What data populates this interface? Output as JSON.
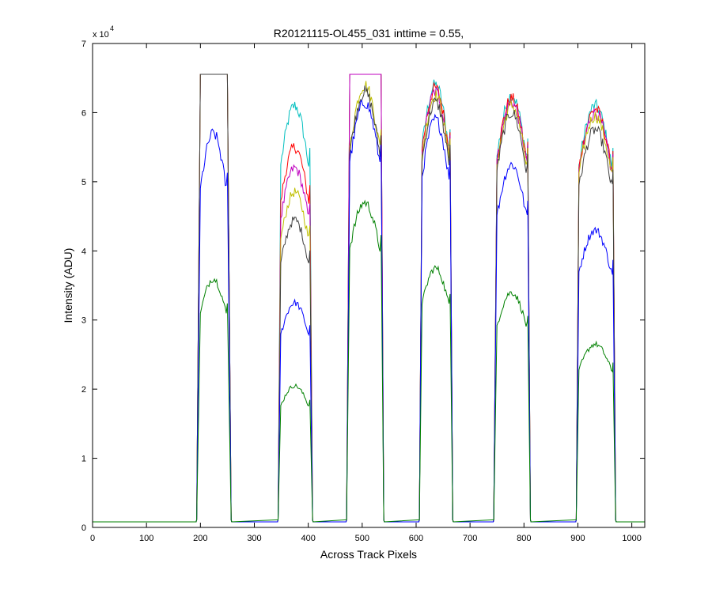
{
  "window": {
    "background": "#ffffff"
  },
  "chart_data": {
    "type": "line",
    "title": "R20121115-OL455_031 inttime = 0.55,",
    "xlabel": "Across Track Pixels",
    "ylabel": "Intensity (ADU)",
    "y_exponent_label": "x 10",
    "y_exponent": "4",
    "xlim": [
      0,
      1024
    ],
    "ylim": [
      0,
      70000
    ],
    "xticks": [
      0,
      100,
      200,
      300,
      400,
      500,
      600,
      700,
      800,
      900,
      1000
    ],
    "xtick_labels": [
      "0",
      "100",
      "200",
      "300",
      "400",
      "500",
      "600",
      "700",
      "800",
      "900",
      "1000"
    ],
    "yticks": [
      0,
      10000,
      20000,
      30000,
      40000,
      50000,
      60000,
      70000
    ],
    "ytick_labels": [
      "0",
      "1",
      "2",
      "3",
      "4",
      "5",
      "6",
      "7"
    ],
    "grid": false,
    "legend": "none",
    "baseline": 800,
    "saturation": 65535,
    "plateaus": [
      {
        "x_start": 192,
        "x_rise": 200,
        "x_fall": 250,
        "x_end": 258
      },
      {
        "x_start": 343,
        "x_rise": 349,
        "x_fall": 403,
        "x_end": 409
      },
      {
        "x_start": 470,
        "x_rise": 477,
        "x_fall": 535,
        "x_end": 541
      },
      {
        "x_start": 605,
        "x_rise": 611,
        "x_fall": 663,
        "x_end": 669
      },
      {
        "x_start": 743,
        "x_rise": 750,
        "x_fall": 807,
        "x_end": 813
      },
      {
        "x_start": 896,
        "x_rise": 902,
        "x_fall": 965,
        "x_end": 971
      }
    ],
    "series": [
      {
        "color": "#00bfbf",
        "peaks": [
          65535,
          61000,
          65535,
          64000,
          62500,
          61000
        ]
      },
      {
        "color": "#ff0000",
        "peaks": [
          65535,
          55000,
          65535,
          63500,
          62000,
          60500
        ]
      },
      {
        "color": "#bf00bf",
        "peaks": [
          65535,
          52000,
          65535,
          63000,
          61500,
          60000
        ]
      },
      {
        "color": "#bfbf00",
        "peaks": [
          65535,
          48500,
          64000,
          62500,
          61000,
          59500
        ]
      },
      {
        "color": "#404040",
        "peaks": [
          65535,
          44500,
          63000,
          61500,
          60000,
          57500
        ]
      },
      {
        "color": "#0000ff",
        "peaks": [
          57000,
          32500,
          61500,
          59000,
          52500,
          43000
        ]
      },
      {
        "color": "#008000",
        "peaks": [
          36000,
          20500,
          47000,
          37500,
          34000,
          26500
        ],
        "floor": 1100
      }
    ]
  }
}
